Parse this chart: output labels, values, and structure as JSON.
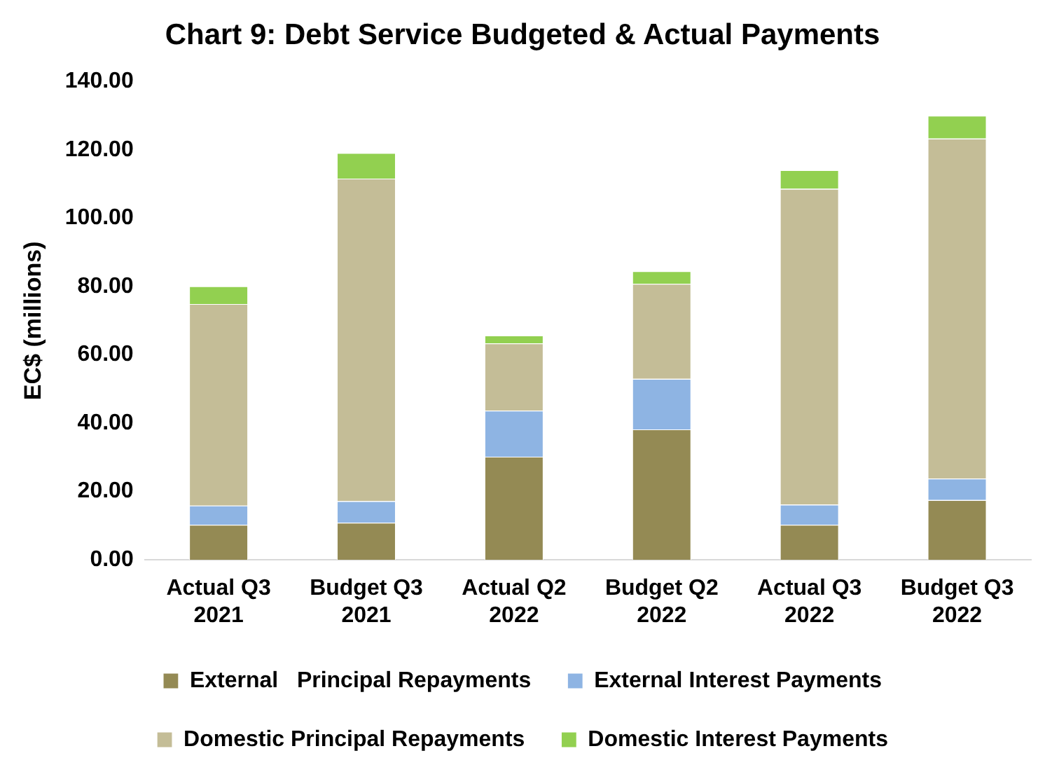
{
  "chart_data": {
    "type": "bar",
    "title": "Chart 9: Debt Service Budgeted & Actual Payments",
    "ylabel": "EC$ (millions)",
    "categories": [
      "Actual Q3 2021",
      "Budget Q3 2021",
      "Actual Q2 2022",
      "Budget Q2 2022",
      "Actual Q3 2022",
      "Budget Q3 2022"
    ],
    "stacked": true,
    "grid": false,
    "legend": "bottom",
    "ylim": [
      0,
      140
    ],
    "yticks": [
      {
        "value": 0,
        "label": "0.00"
      },
      {
        "value": 20,
        "label": "20.00"
      },
      {
        "value": 40,
        "label": "40.00"
      },
      {
        "value": 60,
        "label": "60.00"
      },
      {
        "value": 80,
        "label": "80.00"
      },
      {
        "value": 100,
        "label": "100.00"
      },
      {
        "value": 120,
        "label": "120.00"
      },
      {
        "value": 140,
        "label": "140.00"
      }
    ],
    "series": [
      {
        "name": "External   Principal Repayments",
        "color": "#948a54",
        "values": [
          10.3,
          10.9,
          30.2,
          38.2,
          10.3,
          17.5
        ]
      },
      {
        "name": "External Interest Payments",
        "color": "#8eb4e3",
        "values": [
          5.6,
          6.3,
          13.5,
          14.8,
          5.9,
          6.3
        ]
      },
      {
        "name": "Domestic Principal Repayments",
        "color": "#c4bd97",
        "values": [
          59.0,
          94.4,
          19.7,
          27.8,
          92.4,
          99.5
        ]
      },
      {
        "name": "Domestic Interest Payments",
        "color": "#92d050",
        "values": [
          5.2,
          7.5,
          2.3,
          3.7,
          5.5,
          6.7
        ]
      }
    ]
  }
}
